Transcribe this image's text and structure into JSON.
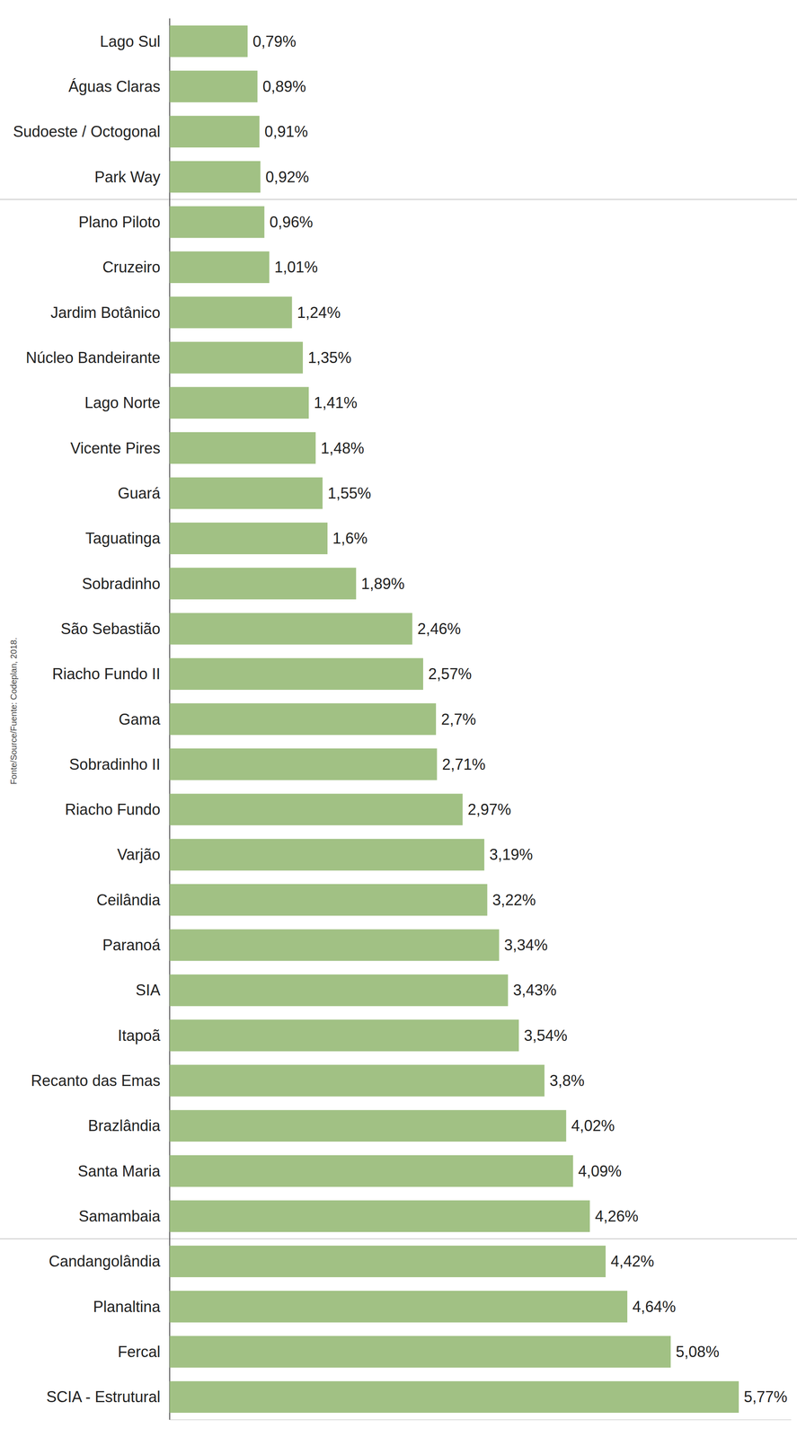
{
  "chart_data": {
    "type": "bar",
    "orientation": "horizontal",
    "source": "Fonte/Source/Fuente: Codeplan, 2018.",
    "categories": [
      "Lago Sul",
      "Águas Claras",
      "Sudoeste / Octogonal",
      "Park Way",
      "Plano Piloto",
      "Cruzeiro",
      "Jardim Botânico",
      "Núcleo Bandeirante",
      "Lago Norte",
      "Vicente Pires",
      "Guará",
      "Taguatinga",
      "Sobradinho",
      "São Sebastião",
      "Riacho Fundo II",
      "Gama",
      "Sobradinho II",
      "Riacho Fundo",
      "Varjão",
      "Ceilândia",
      "Paranoá",
      "SIA",
      "Itapoã",
      "Recanto das Emas",
      "Brazlândia",
      "Santa Maria",
      "Samambaia",
      "Candangolândia",
      "Planaltina",
      "Fercal",
      "SCIA - Estrutural"
    ],
    "values": [
      0.79,
      0.89,
      0.91,
      0.92,
      0.96,
      1.01,
      1.24,
      1.35,
      1.41,
      1.48,
      1.55,
      1.6,
      1.89,
      2.46,
      2.57,
      2.7,
      2.71,
      2.97,
      3.19,
      3.22,
      3.34,
      3.43,
      3.54,
      3.8,
      4.02,
      4.09,
      4.26,
      4.42,
      4.64,
      5.08,
      5.77
    ],
    "value_labels": [
      "0,79%",
      "0,89%",
      "0,91%",
      "0,92%",
      "0,96%",
      "1,01%",
      "1,24%",
      "1,35%",
      "1,41%",
      "1,48%",
      "1,55%",
      "1,6%",
      "1,89%",
      "2,46%",
      "2,57%",
      "2,7%",
      "2,71%",
      "2,97%",
      "3,19%",
      "3,22%",
      "3,34%",
      "3,43%",
      "3,54%",
      "3,8%",
      "4,02%",
      "4,09%",
      "4,26%",
      "4,42%",
      "4,64%",
      "5,08%",
      "5,77%"
    ],
    "color": "#a1c184",
    "xlim": [
      0,
      6.3
    ],
    "data_labels": true,
    "tick_labels": "y",
    "grid": false
  }
}
